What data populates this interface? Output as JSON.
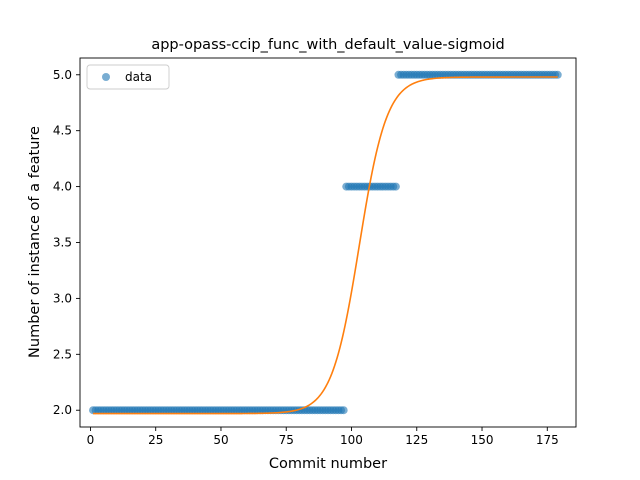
{
  "chart_data": {
    "type": "scatter",
    "title": "app-opass-ccip_func_with_default_value-sigmoid",
    "xlabel": "Commit number",
    "ylabel": "Number of instance of a feature",
    "xlim": [
      -4,
      186
    ],
    "ylim": [
      1.85,
      5.15
    ],
    "xticks": [
      0,
      25,
      50,
      75,
      100,
      125,
      150,
      175
    ],
    "yticks": [
      2.0,
      2.5,
      3.0,
      3.5,
      4.0,
      4.5,
      5.0
    ],
    "ytick_labels": [
      "2.0",
      "2.5",
      "3.0",
      "3.5",
      "4.0",
      "4.5",
      "5.0"
    ],
    "legend": {
      "position": "upper-left",
      "entries": [
        "data"
      ]
    },
    "series": [
      {
        "name": "data",
        "kind": "scatter",
        "color": "#1f77b4",
        "segments": [
          {
            "x_start": 1,
            "x_end": 97,
            "y": 2.0
          },
          {
            "x_start": 98,
            "x_end": 117,
            "y": 4.0
          },
          {
            "x_start": 118,
            "x_end": 179,
            "y": 5.0
          }
        ]
      },
      {
        "kind": "line",
        "color": "#ff7f0e",
        "model": "sigmoid",
        "params": {
          "lower": 1.97,
          "upper": 4.98,
          "midpoint": 103,
          "rate": 0.19
        },
        "x_range": [
          1,
          179
        ]
      }
    ]
  }
}
